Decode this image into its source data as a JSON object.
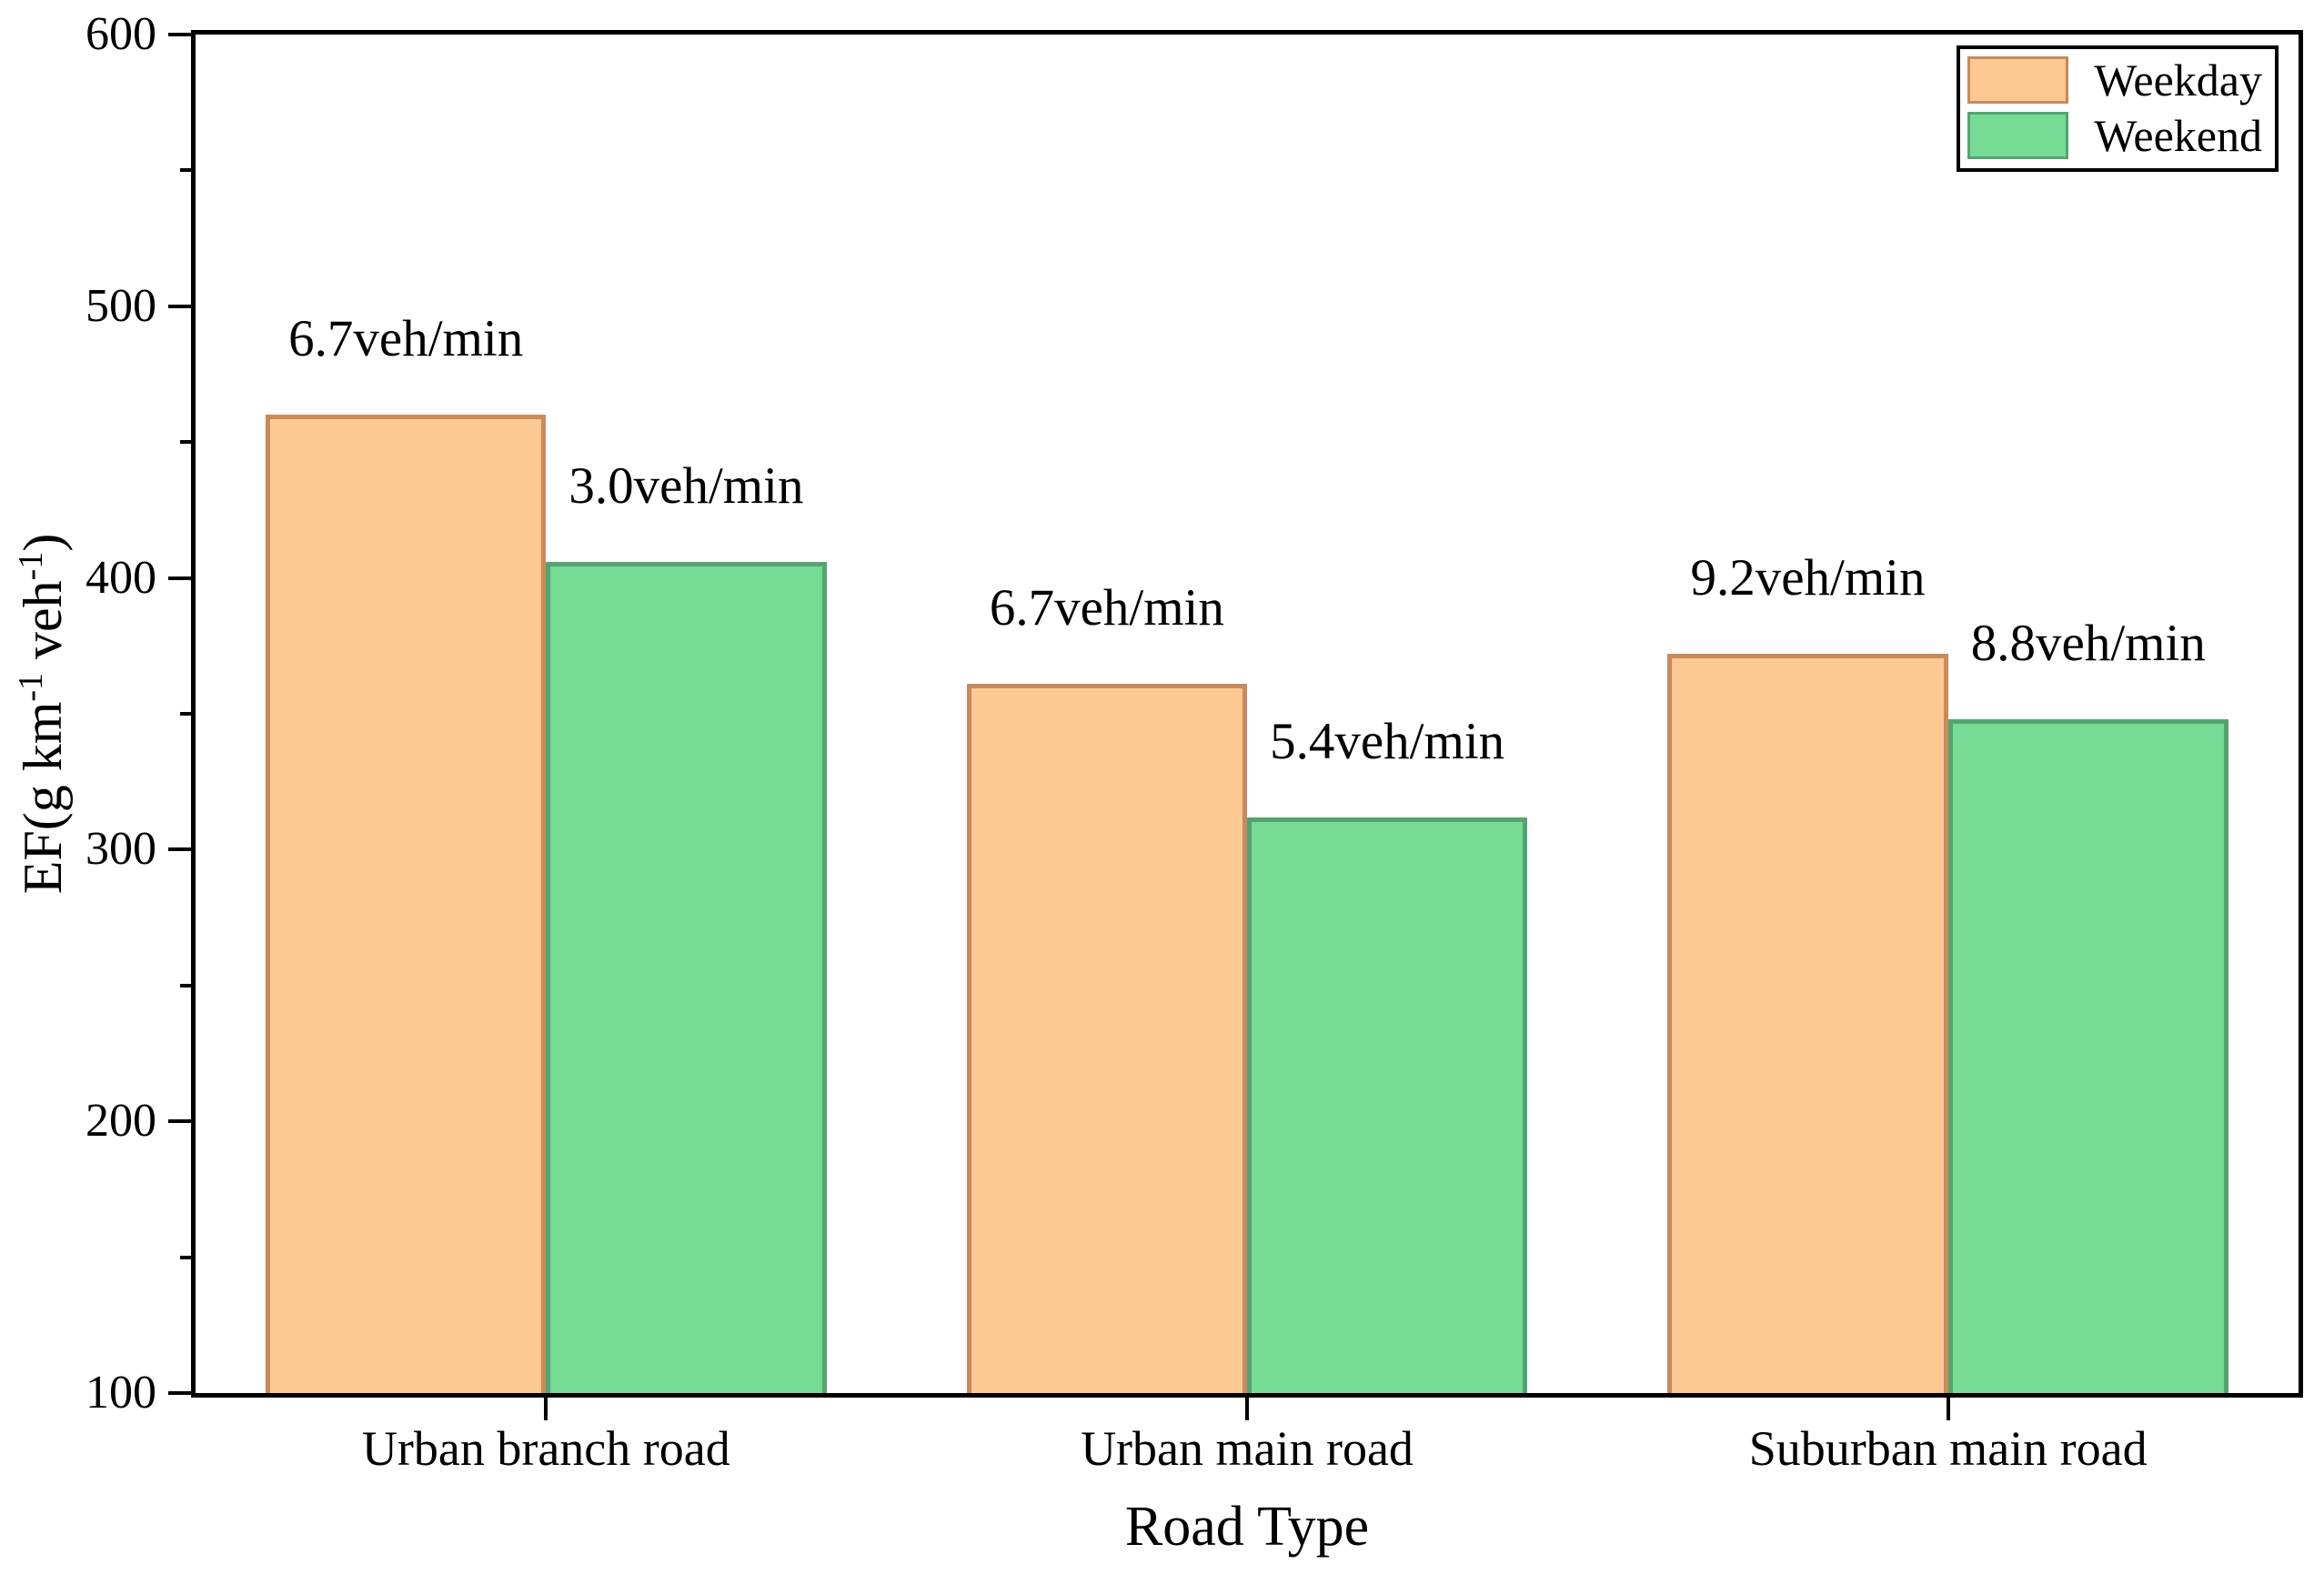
{
  "chart_data": {
    "type": "bar",
    "xlabel": "Road Type",
    "ylabel": "EF(g km⁻¹ veh⁻¹)",
    "ylabel_parts": {
      "base1": "EF(g km",
      "sup1": "-1",
      "base2": " veh",
      "sup2": "-1",
      "base3": ")"
    },
    "categories": [
      "Urban branch road",
      "Urban main road",
      "Suburban main road"
    ],
    "series": [
      {
        "name": "Weekday",
        "values": [
          460,
          361,
          372
        ],
        "annotations": [
          "6.7veh/min",
          "6.7veh/min",
          "9.2veh/min"
        ],
        "fill_color": "#FDC992",
        "edge_color": "#C9895D"
      },
      {
        "name": "Weekend",
        "values": [
          406,
          312,
          348
        ],
        "annotations": [
          "3.0veh/min",
          "5.4veh/min",
          "8.8veh/min"
        ],
        "fill_color": "#75DB95",
        "edge_color": "#54A471"
      }
    ],
    "ylim": [
      100,
      600
    ],
    "yticks_major": [
      100,
      200,
      300,
      400,
      500,
      600
    ],
    "ytick_minor_step": 50,
    "bar_width_fraction": 0.4,
    "grid": false,
    "legend_position": "top-right",
    "axis_color": "#000000",
    "background_color": "#FFFFFF"
  }
}
